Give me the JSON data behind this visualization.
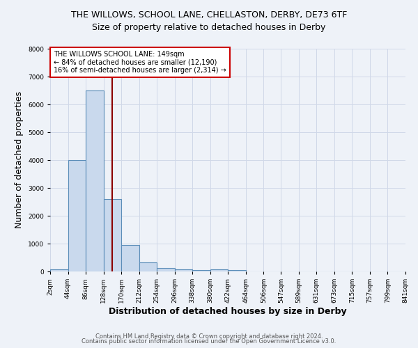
{
  "title": "THE WILLOWS, SCHOOL LANE, CHELLASTON, DERBY, DE73 6TF",
  "subtitle": "Size of property relative to detached houses in Derby",
  "xlabel": "Distribution of detached houses by size in Derby",
  "ylabel": "Number of detached properties",
  "footer_line1": "Contains HM Land Registry data © Crown copyright and database right 2024.",
  "footer_line2": "Contains public sector information licensed under the Open Government Licence v3.0.",
  "annotation_line1": "THE WILLOWS SCHOOL LANE: 149sqm",
  "annotation_line2": "← 84% of detached houses are smaller (12,190)",
  "annotation_line3": "16% of semi-detached houses are larger (2,314) →",
  "bar_edges": [
    2,
    44,
    86,
    128,
    170,
    212,
    254,
    296,
    338,
    380,
    422,
    464,
    506,
    547,
    589,
    631,
    673,
    715,
    757,
    799,
    841
  ],
  "bar_heights": [
    75,
    4000,
    6500,
    2600,
    950,
    320,
    120,
    80,
    50,
    75,
    50,
    0,
    0,
    0,
    0,
    0,
    0,
    0,
    0,
    0
  ],
  "bar_color": "#c9d9ed",
  "bar_edge_color": "#5b8db8",
  "bar_linewidth": 0.8,
  "vline_x": 149,
  "vline_color": "#8b0000",
  "vline_linewidth": 1.5,
  "grid_color": "#d0d8e8",
  "background_color": "#eef2f8",
  "ylim": [
    0,
    8000
  ],
  "yticks": [
    0,
    1000,
    2000,
    3000,
    4000,
    5000,
    6000,
    7000,
    8000
  ],
  "title_fontsize": 9,
  "subtitle_fontsize": 9,
  "tick_label_fontsize": 6.5,
  "axis_label_fontsize": 9,
  "annotation_fontsize": 7,
  "footer_fontsize": 6
}
